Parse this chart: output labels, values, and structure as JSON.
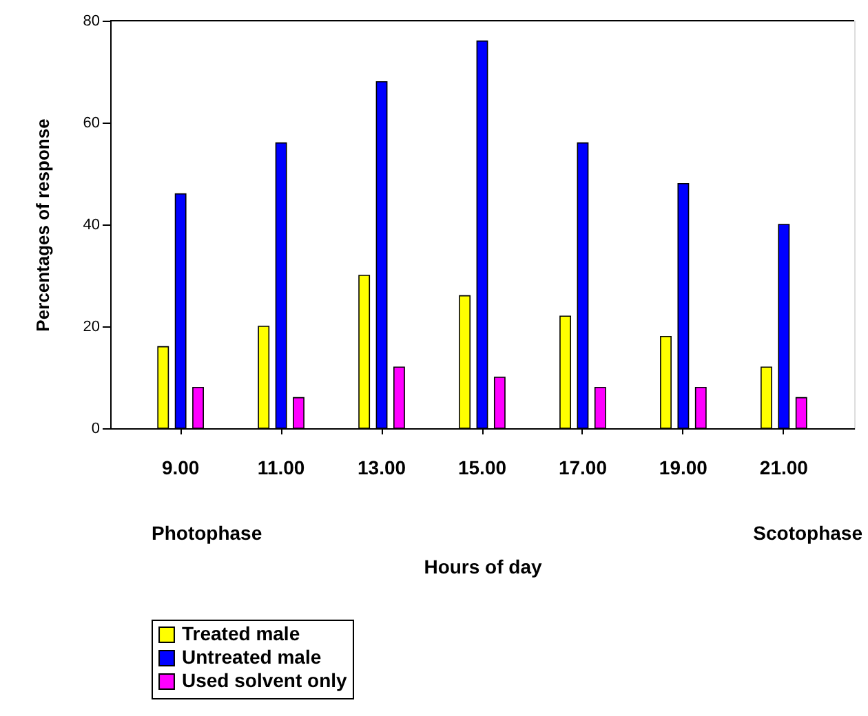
{
  "chart_data": {
    "type": "bar",
    "categories": [
      "9.00",
      "11.00",
      "13.00",
      "15.00",
      "17.00",
      "19.00",
      "21.00"
    ],
    "series": [
      {
        "name": "Treated male",
        "color": "#ffff00",
        "values": [
          16,
          20,
          30,
          26,
          22,
          18,
          12
        ]
      },
      {
        "name": "Untreated male",
        "color": "#0000ff",
        "values": [
          46,
          56,
          68,
          76,
          56,
          48,
          40
        ]
      },
      {
        "name": "Used solvent only",
        "color": "#ff00ff",
        "values": [
          8,
          6,
          12,
          10,
          8,
          8,
          6
        ]
      }
    ],
    "xlabel": "Hours of day",
    "ylabel": "Percentages of response",
    "annotations": [
      "Photophase",
      "Scotophase"
    ],
    "ylim": [
      0,
      80
    ],
    "yticks": [
      0,
      20,
      40,
      60,
      80
    ],
    "grid": false,
    "legend": "bottom"
  }
}
